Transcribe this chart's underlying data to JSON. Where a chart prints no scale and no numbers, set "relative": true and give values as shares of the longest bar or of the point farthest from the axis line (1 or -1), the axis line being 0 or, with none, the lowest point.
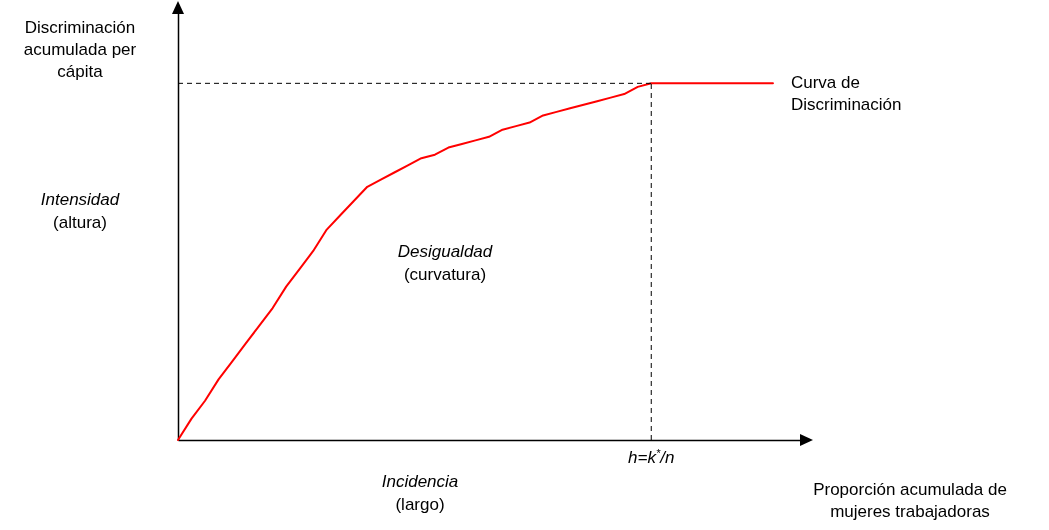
{
  "chart_data": {
    "type": "line",
    "relative": true,
    "marker": "none",
    "line_style": "solid",
    "grid": false,
    "xlabel": "Proporción acumulada de mujeres trabajadoras",
    "ylabel": "Discriminación acumulada per cápita",
    "categories": [
      null,
      null,
      null,
      null,
      null,
      null,
      null,
      null,
      null,
      null,
      null,
      null,
      null,
      null,
      null,
      null,
      null,
      null,
      null,
      null,
      null,
      null,
      null,
      null,
      null,
      null,
      null,
      null,
      null,
      null,
      null,
      null,
      null,
      null,
      null,
      null,
      null,
      null,
      null,
      null,
      null,
      null,
      null,
      null,
      null
    ],
    "series": [
      {
        "name": "Curva de Discriminación",
        "color": "#ff0000",
        "values": [
          0,
          0.06,
          0.11,
          0.17,
          0.22,
          0.27,
          0.32,
          0.37,
          0.43,
          0.48,
          0.53,
          0.59,
          0.63,
          0.67,
          0.71,
          0.73,
          0.75,
          0.77,
          0.79,
          0.8,
          0.82,
          0.83,
          0.84,
          0.85,
          0.87,
          0.88,
          0.89,
          0.91,
          0.92,
          0.93,
          0.94,
          0.95,
          0.96,
          0.97,
          0.99,
          1,
          1,
          1,
          1,
          1,
          1,
          1,
          1,
          1,
          1
        ]
      }
    ],
    "ref_lines": [
      {
        "axis": "y",
        "value": 1,
        "line_style": "dashed",
        "color": "#000000"
      }
    ],
    "annotations": [
      "Intensidad (altura)",
      "Desigualdad (curvatura)",
      "Incidencia (largo)",
      "h=k$^{*}$/n"
    ]
  }
}
